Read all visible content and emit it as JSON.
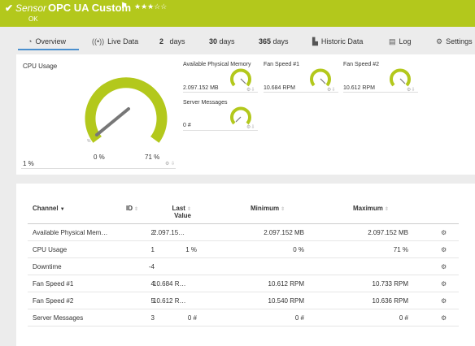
{
  "header": {
    "check": "✔",
    "sensor_label": "Sensor",
    "name": "OPC UA Custom",
    "flag": "⚑",
    "stars": "★★★☆☆",
    "status": "OK"
  },
  "tabs": {
    "overview": "Overview",
    "live": "Live Data",
    "d2_num": "2",
    "d2_unit": "days",
    "d30_num": "30",
    "d30_unit": "days",
    "d365_num": "365",
    "d365_unit": "days",
    "historic": "Historic Data",
    "log": "Log",
    "settings": "Settings"
  },
  "colors": {
    "brand": "#b3c81c",
    "accent": "#4a8fce"
  },
  "overview": {
    "cpu_title": "CPU Usage",
    "cpu_value": "1 %",
    "cpu_min_mark": "0 %",
    "cpu_max_mark": "71 %",
    "cpu_level_pct": 1,
    "mini": [
      {
        "title": "Available Physical Memory",
        "value": "2.097.152 MB"
      },
      {
        "title": "Fan Speed #1",
        "value": "10.684 RPM"
      },
      {
        "title": "Fan Speed #2",
        "value": "10.612 RPM"
      },
      {
        "title": "Server Messages",
        "value": "0 #"
      }
    ]
  },
  "table": {
    "headers": {
      "channel": "Channel",
      "id": "ID",
      "last_1": "Last",
      "last_2": "Value",
      "minimum": "Minimum",
      "maximum": "Maximum"
    },
    "rows": [
      {
        "channel": "Available Physical Mem…",
        "id": "2",
        "last": "2.097.15…",
        "min": "2.097.152 MB",
        "max": "2.097.152 MB"
      },
      {
        "channel": "CPU Usage",
        "id": "1",
        "last": "1 %",
        "min": "0 %",
        "max": "71 %"
      },
      {
        "channel": "Downtime",
        "id": "-4",
        "last": "",
        "min": "",
        "max": ""
      },
      {
        "channel": "Fan Speed #1",
        "id": "4",
        "last": "10.684 R…",
        "min": "10.612 RPM",
        "max": "10.733 RPM"
      },
      {
        "channel": "Fan Speed #2",
        "id": "5",
        "last": "10.612 R…",
        "min": "10.540 RPM",
        "max": "10.636 RPM"
      },
      {
        "channel": "Server Messages",
        "id": "3",
        "last": "0 #",
        "min": "0 #",
        "max": "0 #"
      }
    ]
  }
}
